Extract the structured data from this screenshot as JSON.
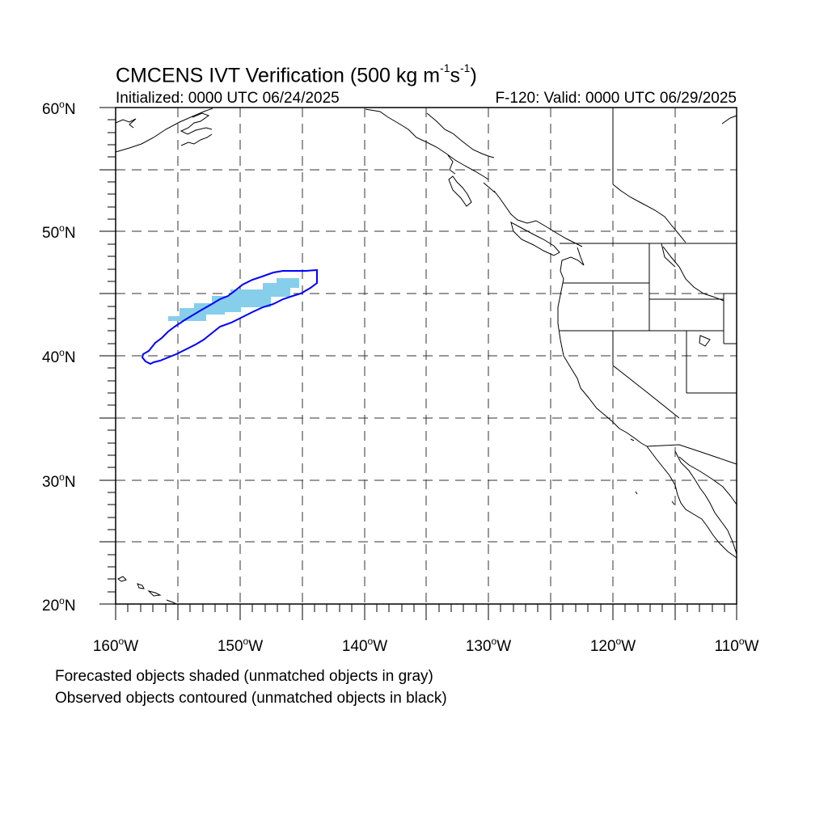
{
  "title": {
    "main_prefix": "CMCENS IVT Verification (500 kg m",
    "exp1": "-1",
    "mid": "s",
    "exp2": "-1",
    "suffix": ")"
  },
  "subtitle_left": "Initialized: 0000 UTC 06/24/2025",
  "subtitle_right": "F-120: Valid: 0000 UTC 06/29/2025",
  "captions": [
    "Forecasted objects shaded (unmatched objects in gray)",
    "Observed objects contoured (unmatched objects in black)"
  ],
  "map": {
    "lat_range": [
      20,
      60
    ],
    "lon_range": [
      -160,
      -110
    ],
    "y_ticks": [
      {
        "num": "60",
        "hemi": "N"
      },
      {
        "num": "50",
        "hemi": "N"
      },
      {
        "num": "40",
        "hemi": "N"
      },
      {
        "num": "30",
        "hemi": "N"
      },
      {
        "num": "20",
        "hemi": "N"
      }
    ],
    "x_ticks": [
      {
        "num": "160",
        "hemi": "W"
      },
      {
        "num": "150",
        "hemi": "W"
      },
      {
        "num": "140",
        "hemi": "W"
      },
      {
        "num": "130",
        "hemi": "W"
      },
      {
        "num": "120",
        "hemi": "W"
      },
      {
        "num": "110",
        "hemi": "W"
      }
    ],
    "gridlines": "dashed",
    "colors": {
      "forecast_fill": "#87ceeb",
      "observed_contour": "#0000ff",
      "coast": "#000000"
    }
  }
}
